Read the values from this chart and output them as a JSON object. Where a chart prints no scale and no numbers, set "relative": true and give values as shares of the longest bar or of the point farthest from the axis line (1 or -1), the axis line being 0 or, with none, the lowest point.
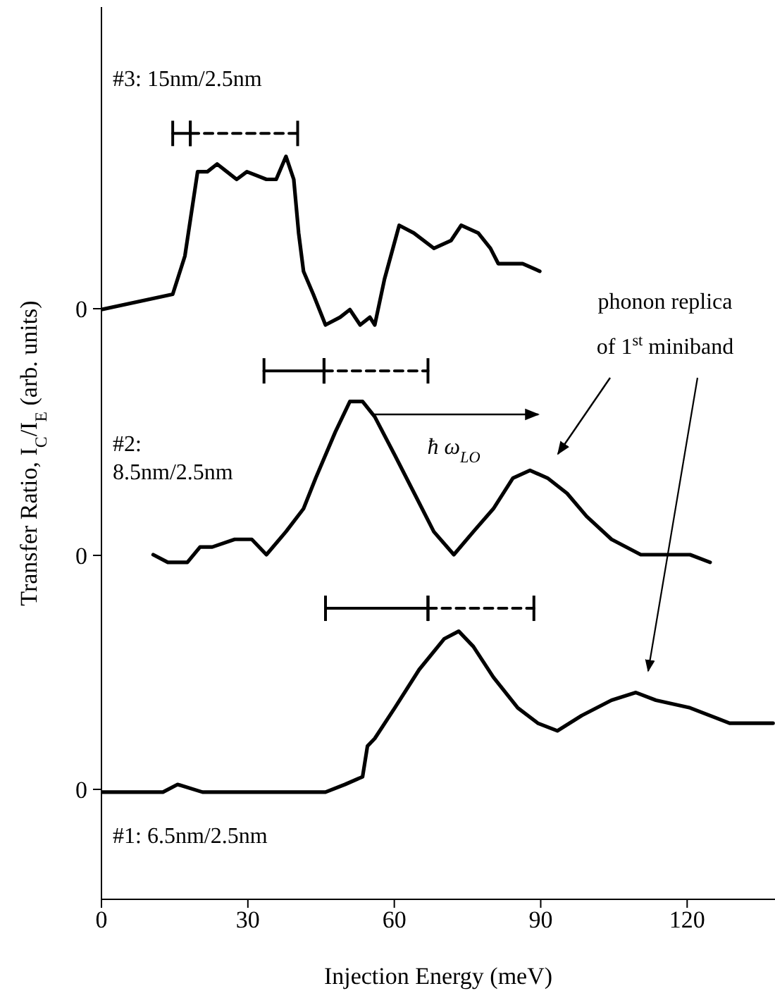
{
  "chart_data": {
    "type": "line",
    "xlabel": "Injection Energy (meV)",
    "ylabel": "Transfer Ratio, I$_{C}$/I$_{E}$ (arb. units)",
    "relative": true,
    "xlim": [
      0,
      138
    ],
    "xticks": [
      0,
      30,
      60,
      90,
      120
    ],
    "grid": false,
    "line_style": "solid",
    "series": [
      {
        "name": "#3: 15nm/2.5nm",
        "color": "#000000",
        "x": [
          0,
          14.6,
          17.1,
          19.7,
          21.7,
          23.7,
          25.7,
          27.7,
          29.8,
          33.8,
          35.8,
          37.8,
          39.4,
          40.4,
          41.4,
          43.4,
          45.9,
          48.9,
          50.9,
          53,
          55,
          56,
          58,
          61,
          64,
          68.1,
          71.6,
          73.7,
          77.2,
          79.7,
          81.3,
          86.3,
          89.8
        ],
        "values": [
          0.77,
          0.79,
          0.84,
          0.95,
          0.95,
          0.96,
          0.95,
          0.94,
          0.95,
          0.94,
          0.94,
          0.97,
          0.94,
          0.87,
          0.82,
          0.79,
          0.75,
          0.76,
          0.77,
          0.75,
          0.76,
          0.75,
          0.81,
          0.88,
          0.87,
          0.85,
          0.86,
          0.88,
          0.87,
          0.85,
          0.83,
          0.83,
          0.82
        ]
      },
      {
        "name": "#2: 8.5nm/2.5nm",
        "color": "#000000",
        "x": [
          10.6,
          13.6,
          17.6,
          20.2,
          22.7,
          27.3,
          30.8,
          33.8,
          37.8,
          41.4,
          43.9,
          47.9,
          50.9,
          53.5,
          56,
          60.1,
          64.1,
          68.1,
          72.2,
          76.2,
          80.3,
          84.3,
          87.8,
          91.4,
          95.4,
          99.4,
          104.5,
          110.5,
          120.6,
          124.7
        ],
        "values": [
          0.45,
          0.44,
          0.44,
          0.46,
          0.46,
          0.47,
          0.47,
          0.45,
          0.48,
          0.51,
          0.55,
          0.61,
          0.65,
          0.65,
          0.63,
          0.58,
          0.53,
          0.48,
          0.45,
          0.48,
          0.51,
          0.55,
          0.56,
          0.55,
          0.53,
          0.5,
          0.47,
          0.45,
          0.45,
          0.44
        ]
      },
      {
        "name": "#1: 6.5nm/2.5nm",
        "color": "#000000",
        "x": [
          0,
          5.5,
          9.6,
          12.6,
          15.6,
          20.7,
          23.7,
          29.8,
          33.8,
          36.8,
          42.9,
          45.9,
          49.9,
          53.5,
          54.5,
          56,
          60.1,
          65.1,
          70.2,
          73.2,
          76.2,
          80.3,
          85.3,
          89.4,
          93.4,
          98.4,
          104.5,
          109.5,
          113.6,
          120.6,
          128.7,
          135.8,
          137.6
        ],
        "values": [
          0.14,
          0.14,
          0.14,
          0.14,
          0.15,
          0.14,
          0.14,
          0.14,
          0.14,
          0.14,
          0.14,
          0.14,
          0.15,
          0.16,
          0.2,
          0.21,
          0.25,
          0.3,
          0.34,
          0.35,
          0.33,
          0.29,
          0.25,
          0.23,
          0.22,
          0.24,
          0.26,
          0.27,
          0.26,
          0.25,
          0.23,
          0.23,
          0.23
        ]
      },
      {
        "color": "#000000",
        "line_style": "solid",
        "x": [
          14.6,
          18.2
        ],
        "values": [
          1.0,
          1.0
        ]
      },
      {
        "color": "#000000",
        "line_style": "dashed",
        "x": [
          18.2,
          40.2
        ],
        "values": [
          1.0,
          1.0
        ]
      },
      {
        "color": "#000000",
        "line_style": "solid",
        "x": [
          33.3,
          45.6
        ],
        "values": [
          0.69,
          0.69
        ]
      },
      {
        "color": "#000000",
        "line_style": "dashed",
        "x": [
          45.6,
          66.9
        ],
        "values": [
          0.69,
          0.69
        ]
      },
      {
        "color": "#000000",
        "line_style": "solid",
        "x": [
          45.9,
          66.9
        ],
        "values": [
          0.38,
          0.38
        ]
      },
      {
        "color": "#000000",
        "line_style": "dashed",
        "x": [
          66.9,
          88.6
        ],
        "values": [
          0.38,
          0.38
        ]
      }
    ],
    "annotations": [
      "0",
      "0",
      "0",
      "ħ ω$_{LO}$",
      "phonon replica",
      "of 1$^{st}$ miniband"
    ]
  }
}
